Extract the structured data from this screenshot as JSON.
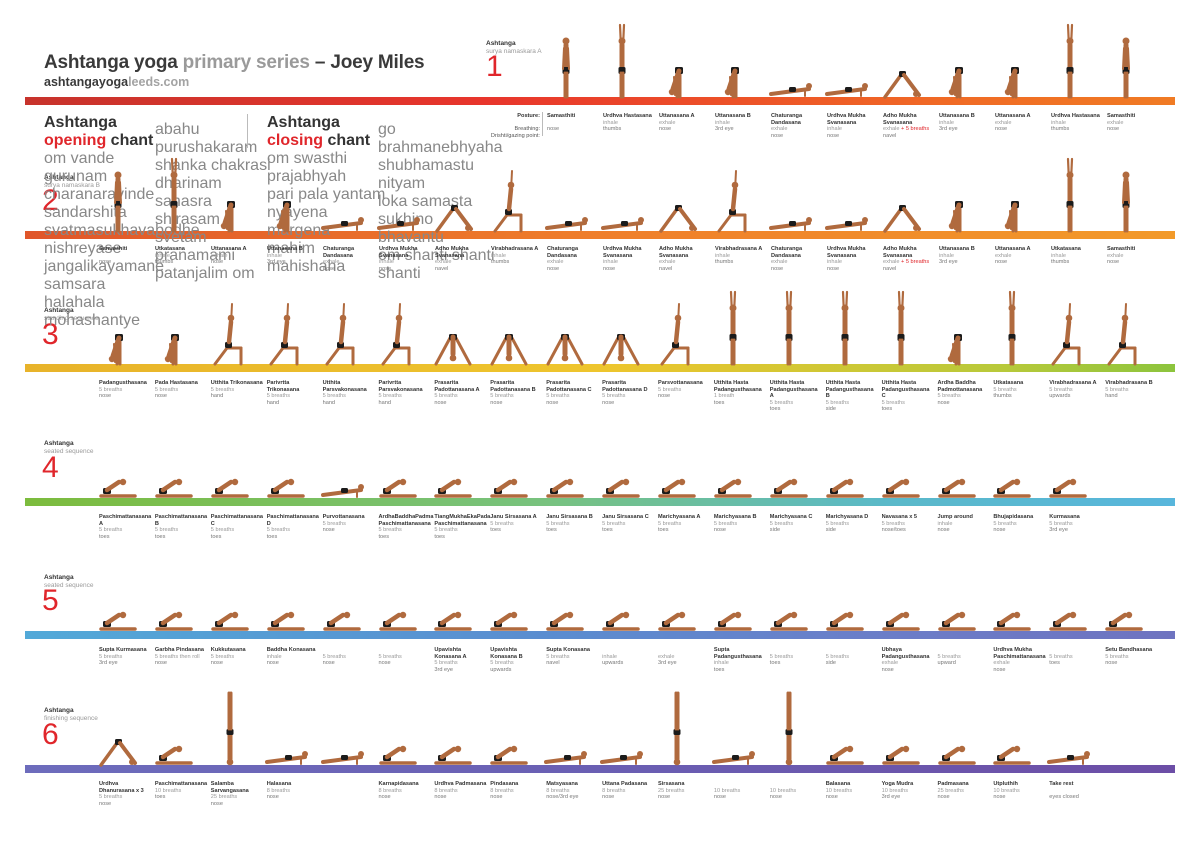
{
  "header": {
    "title_part1": "Ashtanga yoga ",
    "title_part2": "primary series",
    "title_part3": " – Joey Miles",
    "subtitle_part1": "ashtanga",
    "subtitle_part2": "yoga",
    "subtitle_part3": "leeds.com"
  },
  "sections": [
    {
      "number": "1",
      "label1": "Ashtanga",
      "label2": "surya namaskara A"
    },
    {
      "number": "2",
      "label1": "Ashtanga",
      "label2": "surya namaskara B"
    },
    {
      "number": "3",
      "label1": "Ashtanga",
      "label2": "standing sequence"
    },
    {
      "number": "4",
      "label1": "Ashtanga",
      "label2": "seated sequence"
    },
    {
      "number": "5",
      "label1": "Ashtanga",
      "label2": "seated sequence"
    },
    {
      "number": "6",
      "label1": "Ashtanga",
      "label2": "finishing sequence"
    }
  ],
  "legend": {
    "posture": "Posture:",
    "breathing": "Breathing:",
    "drishti": "Drishti/gazing point:"
  },
  "chants": {
    "opening_title_a": "Ashtanga ",
    "opening_title_b": "opening",
    "opening_title_c": " chant",
    "opening_lines_1": [
      "om    vande gurunam charanaravinde",
      "sandarshita svatmasukhavabodhe",
      "nishreyase jangalikayamane",
      "samsara halahala mohashantye"
    ],
    "opening_lines_2": [
      "abahu purushakaram",
      "shanka chakrasi dharinam",
      "sahasra shirasam svetam",
      "pranamami patanjalim    om"
    ],
    "closing_title_a": "Ashtanga ",
    "closing_title_b": "closing",
    "closing_title_c": " chant",
    "closing_lines_1": [
      "om    swasthi prajabhyah",
      "pari pala yantam",
      "nyayena margena",
      "mahim mahishaha"
    ],
    "closing_lines_2": [
      "go brahmanebhyaha",
      "shubhamastu nityam",
      "loka samasta sukhino bhavantu",
      "om    shanti shanti shanti"
    ]
  },
  "rows": [
    {
      "poses": [
        {
          "name": "Samasthiti",
          "breath": "",
          "drishti": "nose"
        },
        {
          "name": "Urdhva Hastasana",
          "breath": "inhale",
          "drishti": "thumbs"
        },
        {
          "name": "Uttanasana A",
          "breath": "exhale",
          "drishti": "nose"
        },
        {
          "name": "Uttanasana B",
          "breath": "inhale",
          "drishti": "3rd eye"
        },
        {
          "name": "Chaturanga Dandasana",
          "breath": "exhale",
          "drishti": "nose"
        },
        {
          "name": "Urdhva Mukha Svanasana",
          "breath": "inhale",
          "drishti": "nose"
        },
        {
          "name": "Adho Mukha Svanasana",
          "breath": "exhale",
          "breath_red": " + 5 breaths",
          "drishti": "navel"
        },
        {
          "name": "Uttanasana B",
          "breath": "inhale",
          "drishti": "3rd eye"
        },
        {
          "name": "Uttanasana A",
          "breath": "exhale",
          "drishti": "nose"
        },
        {
          "name": "Urdhva Hastasana",
          "breath": "inhale",
          "drishti": "thumbs"
        },
        {
          "name": "Samasthiti",
          "breath": "exhale",
          "drishti": "nose"
        }
      ]
    },
    {
      "poses": [
        {
          "name": "Samasthiti",
          "breath": "",
          "drishti": "nose"
        },
        {
          "name": "Utkatasana",
          "breath": "inhale",
          "drishti": "thumbs"
        },
        {
          "name": "Uttanasana A",
          "breath": "exhale",
          "drishti": "nose"
        },
        {
          "name": "Uttanasana B",
          "breath": "inhale",
          "drishti": "3rd eye"
        },
        {
          "name": "Chaturanga Dandasana",
          "breath": "exhale",
          "drishti": "nose"
        },
        {
          "name": "Urdhva Mukha Svanasana",
          "breath": "inhale",
          "drishti": "nose"
        },
        {
          "name": "Adho Mukha Svanasana",
          "breath": "exhale",
          "drishti": "navel"
        },
        {
          "name": "Virabhadrasana A",
          "breath": "inhale",
          "drishti": "thumbs"
        },
        {
          "name": "Chaturanga Dandasana",
          "breath": "exhale",
          "drishti": "nose"
        },
        {
          "name": "Urdhva Mukha Svanasana",
          "breath": "inhale",
          "drishti": "nose"
        },
        {
          "name": "Adho Mukha Svanasana",
          "breath": "exhale",
          "drishti": "navel"
        },
        {
          "name": "Virabhadrasana A",
          "breath": "inhale",
          "drishti": "thumbs"
        },
        {
          "name": "Chaturanga Dandasana",
          "breath": "exhale",
          "drishti": "nose"
        },
        {
          "name": "Urdhva Mukha Svanasana",
          "breath": "inhale",
          "drishti": "nose"
        },
        {
          "name": "Adho Mukha Svanasana",
          "breath": "exhale",
          "breath_red": " + 5 breaths",
          "drishti": "navel"
        },
        {
          "name": "Uttanasana B",
          "breath": "inhale",
          "drishti": "3rd eye"
        },
        {
          "name": "Uttanasana A",
          "breath": "exhale",
          "drishti": "nose"
        },
        {
          "name": "Utkatasana",
          "breath": "inhale",
          "drishti": "thumbs"
        },
        {
          "name": "Samasthiti",
          "breath": "exhale",
          "drishti": "nose"
        }
      ]
    },
    {
      "poses": [
        {
          "name": "Padangusthasana",
          "breath": "5 breaths",
          "drishti": "nose"
        },
        {
          "name": "Pada Hastasana",
          "breath": "5 breaths",
          "drishti": "nose"
        },
        {
          "name": "Utthita Trikonasana",
          "breath": "5 breaths",
          "drishti": "hand"
        },
        {
          "name": "Parivrtta Trikonasana",
          "breath": "5 breaths",
          "drishti": "hand"
        },
        {
          "name": "Utthita Parsvakonasana",
          "breath": "5 breaths",
          "drishti": "hand"
        },
        {
          "name": "Parivrtta Parsvakonasana",
          "breath": "5 breaths",
          "drishti": "hand"
        },
        {
          "name": "Prasarita Padottanasana A",
          "breath": "5 breaths",
          "drishti": "nose"
        },
        {
          "name": "Prasarita Padottanasana B",
          "breath": "5 breaths",
          "drishti": "nose"
        },
        {
          "name": "Prasarita Padottanasana C",
          "breath": "5 breaths",
          "drishti": "nose"
        },
        {
          "name": "Prasarita Padottanasana D",
          "breath": "5 breaths",
          "drishti": "nose"
        },
        {
          "name": "Parsvottanasana",
          "breath": "5 breaths",
          "drishti": "nose"
        },
        {
          "name": "Utthita Hasta Padangusthasana",
          "breath": "1 breath",
          "drishti": "toes"
        },
        {
          "name": "Utthita Hasta Padangusthasana A",
          "breath": "5 breaths",
          "drishti": "toes"
        },
        {
          "name": "Utthita Hasta Padangusthasana B",
          "breath": "5 breaths",
          "drishti": "side"
        },
        {
          "name": "Utthita Hasta Padangusthasana C",
          "breath": "5 breaths",
          "drishti": "toes"
        },
        {
          "name": "Ardha Baddha Padmottanasana",
          "breath": "5 breaths",
          "drishti": "nose"
        },
        {
          "name": "Utkatasana",
          "breath": "5 breaths",
          "drishti": "thumbs"
        },
        {
          "name": "Virabhadrasana A",
          "breath": "5 breaths",
          "drishti": "upwards"
        },
        {
          "name": "Virabhadrasana B",
          "breath": "5 breaths",
          "drishti": "hand"
        }
      ]
    },
    {
      "poses": [
        {
          "name": "Paschimattanasana A",
          "breath": "5 breaths",
          "drishti": "toes"
        },
        {
          "name": "Paschimattanasana B",
          "breath": "5 breaths",
          "drishti": "toes"
        },
        {
          "name": "Paschimattanasana C",
          "breath": "5 breaths",
          "drishti": "toes"
        },
        {
          "name": "Paschimattanasana D",
          "breath": "5 breaths",
          "drishti": "toes"
        },
        {
          "name": "Purvottanasana",
          "breath": "5 breaths",
          "drishti": "nose"
        },
        {
          "name": "ArdhaBaddhaPadma Paschimattanasana",
          "breath": "5 breaths",
          "drishti": "toes"
        },
        {
          "name": "TiangMukhaEkaPada Paschimattanasana",
          "breath": "5 breaths",
          "drishti": "toes"
        },
        {
          "name": "Janu Sirsasana A",
          "breath": "5 breaths",
          "drishti": "toes"
        },
        {
          "name": "Janu Sirsasana B",
          "breath": "5 breaths",
          "drishti": "toes"
        },
        {
          "name": "Janu Sirsasana C",
          "breath": "5 breaths",
          "drishti": "toes"
        },
        {
          "name": "Marichyasana A",
          "breath": "5 breaths",
          "drishti": "toes"
        },
        {
          "name": "Marichyasana B",
          "breath": "5 breaths",
          "drishti": "nose"
        },
        {
          "name": "Marichyasana C",
          "breath": "5 breaths",
          "drishti": "side"
        },
        {
          "name": "Marichyasana D",
          "breath": "5 breaths",
          "drishti": "side"
        },
        {
          "name": "Navasana x 5",
          "breath": "5 breaths",
          "drishti": "nose/toes"
        },
        {
          "name": "Jump around",
          "breath": "inhale",
          "drishti": "nose"
        },
        {
          "name": "Bhujapidasana",
          "breath": "5 breaths",
          "drishti": "nose"
        },
        {
          "name": "Kurmasana",
          "breath": "5 breaths",
          "drishti": "3rd eye"
        }
      ]
    },
    {
      "poses": [
        {
          "name": "Supta Kurmasana",
          "breath": "5 breaths",
          "drishti": "3rd eye"
        },
        {
          "name": "Garbha Pindasana",
          "breath": "5 breaths then roll",
          "drishti": "nose"
        },
        {
          "name": "Kukkutasana",
          "breath": "5 breaths",
          "drishti": "nose"
        },
        {
          "name": "Baddha Konasana",
          "breath": "inhale",
          "drishti": "nose"
        },
        {
          "name": "",
          "breath": "5 breaths",
          "drishti": "nose"
        },
        {
          "name": "",
          "breath": "5 breaths",
          "drishti": "nose"
        },
        {
          "name": "Upavishta Konasana A",
          "breath": "5 breaths",
          "drishti": "3rd eye"
        },
        {
          "name": "Upavishta Konasana B",
          "breath": "5 breaths",
          "drishti": "upwards"
        },
        {
          "name": "Supta Konasana",
          "breath": "5 breaths",
          "drishti": "navel"
        },
        {
          "name": "",
          "breath": "inhale",
          "drishti": "upwards"
        },
        {
          "name": "",
          "breath": "exhale",
          "drishti": "3rd eye"
        },
        {
          "name": "Supta Padangusthasana",
          "breath": "inhale",
          "drishti": "toes"
        },
        {
          "name": "",
          "breath": "5 breaths",
          "drishti": "toes"
        },
        {
          "name": "",
          "breath": "5 breaths",
          "drishti": "side"
        },
        {
          "name": "Ubhaya Padangusthasana",
          "breath": "exhale",
          "drishti": "nose"
        },
        {
          "name": "",
          "breath": "5 breaths",
          "drishti": "upward"
        },
        {
          "name": "Urdhva Mukha Paschimattanasana",
          "breath": "exhale",
          "drishti": "nose"
        },
        {
          "name": "",
          "breath": "5 breaths",
          "drishti": "toes"
        },
        {
          "name": "Setu Bandhasana",
          "breath": "5 breaths",
          "drishti": "nose"
        }
      ]
    },
    {
      "poses": [
        {
          "name": "Urdhva Dhanurasana x 3",
          "breath": "5 breaths",
          "drishti": "nose"
        },
        {
          "name": "Paschimattanasana",
          "breath": "10 breaths",
          "drishti": "toes"
        },
        {
          "name": "Salamba Sarvangasana",
          "breath": "25 breaths",
          "drishti": "nose"
        },
        {
          "name": "Halasana",
          "breath": "8 breaths",
          "drishti": "nose"
        },
        {
          "name": "",
          "breath": "",
          "drishti": ""
        },
        {
          "name": "Karnapidasana",
          "breath": "8 breaths",
          "drishti": "nose"
        },
        {
          "name": "Urdhva Padmasana",
          "breath": "8 breaths",
          "drishti": "nose"
        },
        {
          "name": "Pindasana",
          "breath": "8 breaths",
          "drishti": "nose"
        },
        {
          "name": "Matsyasana",
          "breath": "8 breaths",
          "drishti": "nose/3rd eye"
        },
        {
          "name": "Uttana Padasana",
          "breath": "8 breaths",
          "drishti": "nose"
        },
        {
          "name": "Sirsasana",
          "breath": "25 breaths",
          "drishti": "nose"
        },
        {
          "name": "",
          "breath": "10 breaths",
          "drishti": "nose"
        },
        {
          "name": "",
          "breath": "10 breaths",
          "drishti": "nose"
        },
        {
          "name": "Balasana",
          "breath": "10 breaths",
          "drishti": "nose"
        },
        {
          "name": "Yoga Mudra",
          "breath": "10 breaths",
          "drishti": "3rd eye"
        },
        {
          "name": "Padmasana",
          "breath": "25 breaths",
          "drishti": "nose"
        },
        {
          "name": "Utpluthih",
          "breath": "10 breaths",
          "drishti": "nose"
        },
        {
          "name": "Take rest",
          "breath": "",
          "drishti": "eyes closed"
        }
      ]
    }
  ],
  "colors": {
    "accent_red": "#e0262b",
    "text_dark": "#333333",
    "text_grey": "#999999",
    "skin": "#b06a3e",
    "shorts": "#1b1b1b"
  }
}
